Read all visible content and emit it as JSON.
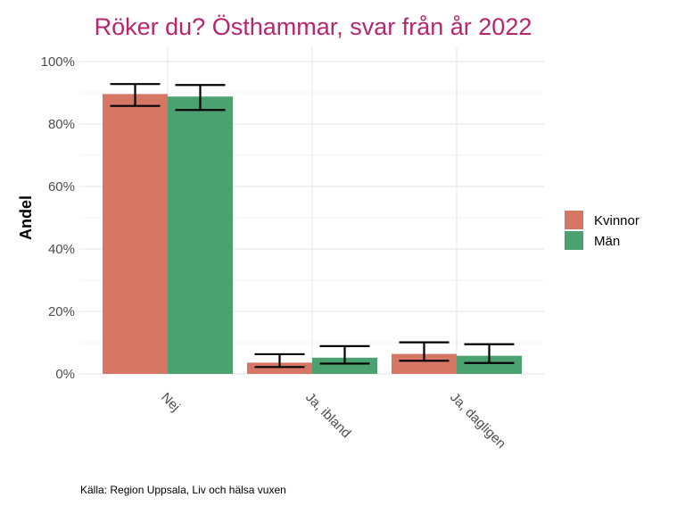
{
  "chart_data": {
    "type": "bar",
    "title": "Röker du? Östhammar, svar från år 2022",
    "xlabel": "",
    "ylabel": "Andel",
    "categories": [
      "Nej",
      "Ja, ibland",
      "Ja, dagligen"
    ],
    "series": [
      {
        "name": "Kvinnor",
        "color": "#d67665",
        "values": [
          0.896,
          0.036,
          0.064
        ],
        "error_low": [
          0.858,
          0.022,
          0.042
        ],
        "error_high": [
          0.928,
          0.063,
          0.101
        ]
      },
      {
        "name": "Män",
        "color": "#4ba16f",
        "values": [
          0.888,
          0.052,
          0.058
        ],
        "error_low": [
          0.845,
          0.033,
          0.035
        ],
        "error_high": [
          0.925,
          0.089,
          0.095
        ]
      }
    ],
    "ylim": [
      0,
      1
    ],
    "yticks": [
      0,
      0.2,
      0.4,
      0.6,
      0.8,
      1.0
    ],
    "ytick_labels": [
      "0%",
      "20%",
      "40%",
      "60%",
      "80%",
      "100%"
    ],
    "title_color": "#b8256f",
    "grid": true,
    "legend_position": "right",
    "caption": "Källa: Region Uppsala, Liv och hälsa vuxen"
  }
}
